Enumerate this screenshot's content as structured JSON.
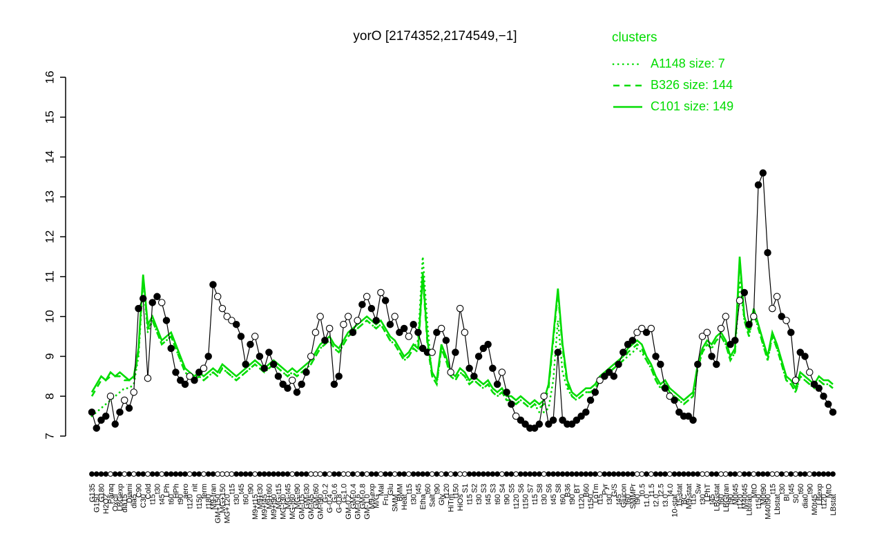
{
  "title": "yorO [2174352,2174549,−1]",
  "colors": {
    "cluster": "#00DC00",
    "series_black": "#000000",
    "background": "#FFFFFF"
  },
  "legend": {
    "title": "clusters",
    "entries": [
      {
        "label": "A1148 size: 7",
        "style": "dotted"
      },
      {
        "label": "B326 size: 144",
        "style": "dashed"
      },
      {
        "label": "C101 size: 149",
        "style": "solid"
      }
    ]
  },
  "chart_data": {
    "type": "line",
    "title": "yorO [2174352,2174549,−1]",
    "xlabel": "",
    "ylabel": "",
    "ylim": [
      7,
      16
    ],
    "yticks": [
      7,
      8,
      9,
      10,
      11,
      12,
      13,
      14,
      15,
      16
    ],
    "grid": false,
    "legend_position": "top-right",
    "series_meta": [
      {
        "name": "yorO expression",
        "style": "black line with circle markers (filled/open)"
      },
      {
        "name": "C101",
        "size": 149,
        "style": "solid green"
      },
      {
        "name": "B326",
        "size": 144,
        "style": "dashed green"
      },
      {
        "name": "A1148",
        "size": 7,
        "style": "dotted green"
      }
    ],
    "point_format": [
      "condition_label",
      "gene_value",
      "open_marker",
      "C101_value",
      "B326_value",
      "A1148_value"
    ],
    "points": [
      [
        "G135",
        7.6,
        0,
        8.1,
        8.0,
        7.5
      ],
      [
        "G150",
        7.2,
        0,
        8.3,
        8.2,
        7.6
      ],
      [
        "G180",
        7.4,
        0,
        8.5,
        8.4,
        7.7
      ],
      [
        "H2O2",
        7.5,
        0,
        8.4,
        8.4,
        7.8
      ],
      [
        "Paraq",
        8.0,
        1,
        8.6,
        8.5,
        7.9
      ],
      [
        "Oxctl",
        7.3,
        0,
        8.5,
        8.5,
        8.0
      ],
      [
        "LBGexp",
        7.6,
        0,
        8.6,
        8.5,
        8.1
      ],
      [
        "dia15",
        7.9,
        1,
        8.5,
        8.4,
        8.2
      ],
      [
        "Diami",
        7.7,
        0,
        8.4,
        8.4,
        8.2
      ],
      [
        "dia5",
        8.1,
        1,
        8.5,
        8.4,
        8.3
      ],
      [
        "C90",
        10.2,
        0,
        9.2,
        9.1,
        9.0
      ],
      [
        "C30",
        10.45,
        0,
        11.05,
        11.0,
        10.9
      ],
      [
        "Cold",
        8.45,
        1,
        9.8,
        9.7,
        9.6
      ],
      [
        "t15",
        10.35,
        0,
        10.0,
        9.9,
        9.9
      ],
      [
        "t30",
        10.5,
        0,
        9.7,
        9.6,
        9.6
      ],
      [
        "t45",
        10.35,
        1,
        9.4,
        9.3,
        9.3
      ],
      [
        "LPh",
        9.9,
        0,
        9.5,
        9.4,
        9.4
      ],
      [
        "t60",
        9.2,
        0,
        9.6,
        9.5,
        9.5
      ],
      [
        "HPh",
        8.6,
        0,
        9.3,
        9.2,
        9.2
      ],
      [
        "t90",
        8.4,
        0,
        9.0,
        8.9,
        8.9
      ],
      [
        "aero",
        8.3,
        0,
        8.7,
        8.6,
        8.6
      ],
      [
        "t120",
        8.5,
        1,
        8.6,
        8.5,
        8.5
      ],
      [
        "nit",
        8.4,
        0,
        8.5,
        8.4,
        8.4
      ],
      [
        "t150",
        8.6,
        0,
        8.6,
        8.5,
        8.5
      ],
      [
        "ferm",
        8.7,
        1,
        8.5,
        8.4,
        8.4
      ],
      [
        "t180",
        9.0,
        0,
        8.6,
        8.5,
        8.5
      ],
      [
        "M9-tran",
        10.8,
        0,
        8.7,
        8.6,
        8.6
      ],
      [
        "GM+150",
        10.5,
        1,
        8.6,
        8.5,
        8.5
      ],
      [
        "MG+150",
        10.2,
        1,
        8.8,
        8.7,
        8.7
      ],
      [
        "MG+120",
        10.0,
        1,
        8.7,
        8.6,
        8.6
      ],
      [
        "t15",
        9.9,
        1,
        8.6,
        8.5,
        8.5
      ],
      [
        "t30",
        9.8,
        0,
        8.5,
        8.4,
        8.4
      ],
      [
        "t45",
        9.5,
        0,
        8.6,
        8.5,
        8.5
      ],
      [
        "t60",
        8.8,
        0,
        8.7,
        8.6,
        8.6
      ],
      [
        "t90",
        9.3,
        0,
        8.8,
        8.7,
        8.7
      ],
      [
        "M9+t15",
        9.5,
        1,
        8.9,
        8.8,
        8.8
      ],
      [
        "M9+t30",
        9.0,
        0,
        8.8,
        8.7,
        8.7
      ],
      [
        "M9+t45",
        8.7,
        0,
        8.7,
        8.6,
        8.6
      ],
      [
        "M9+t60",
        9.1,
        0,
        8.8,
        8.7,
        8.7
      ],
      [
        "M9+t90",
        8.8,
        0,
        8.9,
        8.8,
        8.8
      ],
      [
        "MG-t15",
        8.5,
        0,
        8.8,
        8.7,
        8.7
      ],
      [
        "MG-t30",
        8.3,
        0,
        8.7,
        8.6,
        8.6
      ],
      [
        "MG-t45",
        8.2,
        0,
        8.6,
        8.5,
        8.5
      ],
      [
        "MG-t60",
        8.4,
        1,
        8.7,
        8.6,
        8.6
      ],
      [
        "MG-t90",
        8.1,
        0,
        8.6,
        8.5,
        8.5
      ],
      [
        "GM-t15",
        8.3,
        0,
        8.7,
        8.6,
        8.6
      ],
      [
        "GM-t30",
        8.6,
        0,
        8.8,
        8.7,
        8.7
      ],
      [
        "GM-t45",
        9.0,
        1,
        8.9,
        8.8,
        8.8
      ],
      [
        "GM-t60",
        9.6,
        1,
        9.1,
        9.0,
        9.0
      ],
      [
        "GM-t90",
        10.0,
        1,
        9.3,
        9.2,
        9.2
      ],
      [
        "G-0.2",
        9.4,
        0,
        9.4,
        9.3,
        9.3
      ],
      [
        "G-0.4",
        9.7,
        1,
        9.5,
        9.4,
        9.4
      ],
      [
        "G-0.6",
        8.3,
        0,
        9.3,
        9.2,
        9.2
      ],
      [
        "G-0.8",
        8.5,
        0,
        9.2,
        9.1,
        9.1
      ],
      [
        "G-1.0",
        9.8,
        1,
        9.4,
        9.3,
        9.3
      ],
      [
        "GM-0.2",
        10.0,
        1,
        9.6,
        9.5,
        9.5
      ],
      [
        "GM-0.4",
        9.6,
        0,
        9.7,
        9.6,
        9.6
      ],
      [
        "GM-0.6",
        9.9,
        1,
        9.8,
        9.7,
        9.7
      ],
      [
        "GM-0.8",
        10.3,
        0,
        9.9,
        9.8,
        9.8
      ],
      [
        "GM-1.0",
        10.5,
        1,
        10.0,
        9.9,
        9.9
      ],
      [
        "M9-exp",
        10.2,
        0,
        9.9,
        9.8,
        9.8
      ],
      [
        "M/G",
        9.9,
        0,
        9.8,
        9.7,
        9.7
      ],
      [
        "Mal",
        10.6,
        1,
        9.9,
        9.8,
        9.8
      ],
      [
        "Fru",
        10.4,
        0,
        9.7,
        9.6,
        9.6
      ],
      [
        "Glu",
        9.8,
        0,
        9.5,
        9.4,
        9.4
      ],
      [
        "SMM",
        10.0,
        1,
        9.4,
        9.3,
        9.3
      ],
      [
        "BMM",
        9.6,
        0,
        9.2,
        9.1,
        9.1
      ],
      [
        "Heat",
        9.7,
        0,
        9.0,
        8.9,
        8.9
      ],
      [
        "t15",
        9.5,
        1,
        9.1,
        9.0,
        9.0
      ],
      [
        "t30",
        9.8,
        0,
        9.3,
        9.2,
        9.2
      ],
      [
        "t45",
        9.6,
        0,
        9.2,
        9.1,
        9.4
      ],
      [
        "Etha",
        9.2,
        0,
        11.1,
        11.0,
        11.5
      ],
      [
        "t60",
        9.1,
        0,
        9.4,
        9.3,
        9.8
      ],
      [
        "Salt",
        9.1,
        1,
        8.6,
        8.5,
        8.5
      ],
      [
        "t90",
        9.6,
        0,
        8.4,
        8.3,
        8.3
      ],
      [
        "Gly",
        9.7,
        1,
        9.3,
        9.2,
        9.2
      ],
      [
        "t120",
        9.4,
        0,
        9.0,
        8.9,
        8.9
      ],
      [
        "HiTm",
        8.6,
        1,
        8.6,
        8.5,
        8.5
      ],
      [
        "t150",
        9.1,
        0,
        8.5,
        8.4,
        8.4
      ],
      [
        "HiOs",
        10.2,
        1,
        8.7,
        8.6,
        8.6
      ],
      [
        "S1",
        9.6,
        1,
        8.6,
        8.5,
        8.5
      ],
      [
        "t15",
        8.7,
        0,
        8.4,
        8.3,
        8.3
      ],
      [
        "S2",
        8.5,
        0,
        8.5,
        8.4,
        8.4
      ],
      [
        "t30",
        9.0,
        0,
        8.4,
        8.3,
        8.3
      ],
      [
        "S3",
        9.2,
        0,
        8.3,
        8.2,
        8.2
      ],
      [
        "t45",
        9.3,
        0,
        8.4,
        8.3,
        8.3
      ],
      [
        "S3",
        8.7,
        0,
        8.2,
        8.1,
        8.1
      ],
      [
        "t60",
        8.3,
        0,
        8.1,
        8.0,
        8.0
      ],
      [
        "S4",
        8.6,
        1,
        8.2,
        8.1,
        8.1
      ],
      [
        "t90",
        8.1,
        0,
        8.0,
        7.9,
        7.9
      ],
      [
        "S5",
        7.8,
        0,
        8.0,
        7.9,
        7.9
      ],
      [
        "t120",
        7.5,
        1,
        7.9,
        7.8,
        7.8
      ],
      [
        "S6",
        7.4,
        0,
        8.0,
        7.9,
        7.9
      ],
      [
        "t150",
        7.3,
        0,
        7.9,
        7.8,
        7.8
      ],
      [
        "S7",
        7.2,
        0,
        7.8,
        7.7,
        7.7
      ],
      [
        "t15",
        7.2,
        0,
        7.9,
        7.8,
        7.8
      ],
      [
        "S8",
        7.3,
        0,
        7.8,
        7.7,
        7.6
      ],
      [
        "t30",
        8.0,
        1,
        7.9,
        7.8,
        7.6
      ],
      [
        "S6",
        7.3,
        0,
        8.3,
        8.2,
        7.7
      ],
      [
        "t45",
        7.4,
        0,
        9.5,
        9.4,
        8.4
      ],
      [
        "S8",
        9.1,
        0,
        10.7,
        10.6,
        9.9
      ],
      [
        "t60",
        7.4,
        0,
        9.3,
        9.2,
        8.6
      ],
      [
        "B36",
        7.3,
        0,
        8.4,
        8.3,
        8.2
      ],
      [
        "t90",
        7.3,
        0,
        8.1,
        8.0,
        8.0
      ],
      [
        "BT",
        7.4,
        0,
        8.0,
        7.9,
        7.9
      ],
      [
        "t120",
        7.5,
        0,
        8.1,
        8.0,
        8.0
      ],
      [
        "B60",
        7.6,
        0,
        8.2,
        8.1,
        8.1
      ],
      [
        "t150",
        7.9,
        0,
        8.2,
        8.1,
        8.1
      ],
      [
        "LoTm",
        8.1,
        0,
        8.3,
        8.2,
        8.2
      ],
      [
        "t15",
        8.4,
        1,
        8.5,
        8.4,
        8.4
      ],
      [
        "Pyr",
        8.5,
        0,
        8.6,
        8.5,
        8.5
      ],
      [
        "t30",
        8.6,
        0,
        8.7,
        8.6,
        8.6
      ],
      [
        "G/S",
        8.5,
        0,
        8.8,
        8.7,
        8.7
      ],
      [
        "t45",
        8.8,
        0,
        8.9,
        8.8,
        8.8
      ],
      [
        "Glucon",
        9.1,
        0,
        9.0,
        8.9,
        8.9
      ],
      [
        "t60",
        9.3,
        0,
        9.2,
        9.1,
        9.0
      ],
      [
        "SMMPr",
        9.4,
        0,
        9.3,
        9.2,
        9.1
      ],
      [
        "t90",
        9.6,
        1,
        9.4,
        9.3,
        9.2
      ],
      [
        "t0.5",
        9.7,
        1,
        9.3,
        9.2,
        9.1
      ],
      [
        "t1.0",
        9.6,
        0,
        9.0,
        8.9,
        8.9
      ],
      [
        "t1.5",
        9.7,
        1,
        8.8,
        8.7,
        8.7
      ],
      [
        "t2.0",
        9.0,
        0,
        8.5,
        8.4,
        8.4
      ],
      [
        "t2.5",
        8.8,
        0,
        8.3,
        8.2,
        8.2
      ],
      [
        "t3.0",
        8.2,
        0,
        8.4,
        8.3,
        8.3
      ],
      [
        "t4.0",
        8.0,
        1,
        8.2,
        8.1,
        8.1
      ],
      [
        "10-stat",
        7.9,
        0,
        8.1,
        8.0,
        8.0
      ],
      [
        "15-stat",
        7.6,
        0,
        8.0,
        7.9,
        7.9
      ],
      [
        "BC",
        7.5,
        0,
        7.9,
        7.8,
        7.8
      ],
      [
        "M9-stat",
        7.5,
        0,
        8.0,
        7.9,
        7.9
      ],
      [
        "t15",
        7.4,
        0,
        8.1,
        8.0,
        8.0
      ],
      [
        "Sw",
        8.8,
        0,
        8.8,
        8.7,
        8.7
      ],
      [
        "t30",
        9.5,
        1,
        9.2,
        9.1,
        9.1
      ],
      [
        "LPhT",
        9.6,
        1,
        9.4,
        9.3,
        9.3
      ],
      [
        "t45",
        9.0,
        0,
        9.3,
        9.2,
        9.2
      ],
      [
        "LBGstat",
        8.8,
        0,
        9.5,
        9.4,
        9.4
      ],
      [
        "t60",
        9.7,
        1,
        9.6,
        9.5,
        9.5
      ],
      [
        "LBGtran",
        10.0,
        1,
        9.4,
        9.3,
        9.3
      ],
      [
        "t90",
        9.3,
        0,
        9.0,
        8.9,
        8.9
      ],
      [
        "M0t45",
        9.4,
        0,
        9.2,
        9.1,
        9.1
      ],
      [
        "t120",
        10.4,
        1,
        11.5,
        11.4,
        10.9
      ],
      [
        "M40t45",
        10.6,
        0,
        10.0,
        9.9,
        9.9
      ],
      [
        "Lbtran",
        9.8,
        0,
        9.6,
        9.5,
        9.5
      ],
      [
        "MtO",
        10.0,
        1,
        10.2,
        10.1,
        10.1
      ],
      [
        "t150",
        13.3,
        0,
        9.8,
        9.7,
        9.7
      ],
      [
        "M0t90",
        13.6,
        0,
        9.4,
        9.3,
        9.3
      ],
      [
        "M40t90",
        11.6,
        0,
        9.0,
        8.9,
        8.9
      ],
      [
        "t15",
        10.2,
        1,
        9.6,
        9.5,
        9.5
      ],
      [
        "Lbstat",
        10.5,
        1,
        9.3,
        9.2,
        9.2
      ],
      [
        "t30",
        10.0,
        0,
        8.9,
        8.8,
        8.8
      ],
      [
        "BI",
        9.9,
        1,
        8.5,
        8.4,
        8.4
      ],
      [
        "t45",
        9.6,
        0,
        8.4,
        8.3,
        8.3
      ],
      [
        "S0",
        8.4,
        1,
        8.2,
        8.1,
        8.1
      ],
      [
        "t60",
        9.1,
        0,
        8.6,
        8.5,
        8.5
      ],
      [
        "dia0",
        9.0,
        0,
        8.5,
        8.4,
        8.4
      ],
      [
        "t90",
        8.6,
        1,
        8.4,
        8.3,
        8.3
      ],
      [
        "M0t45",
        8.3,
        0,
        8.3,
        8.2,
        8.2
      ],
      [
        "LBexp",
        8.2,
        0,
        8.5,
        8.4,
        8.4
      ],
      [
        "t120",
        8.0,
        0,
        8.4,
        8.3,
        8.3
      ],
      [
        "MtO",
        7.8,
        0,
        8.4,
        8.3,
        8.3
      ],
      [
        "LBstat",
        7.6,
        0,
        8.3,
        8.2,
        8.2
      ]
    ]
  }
}
